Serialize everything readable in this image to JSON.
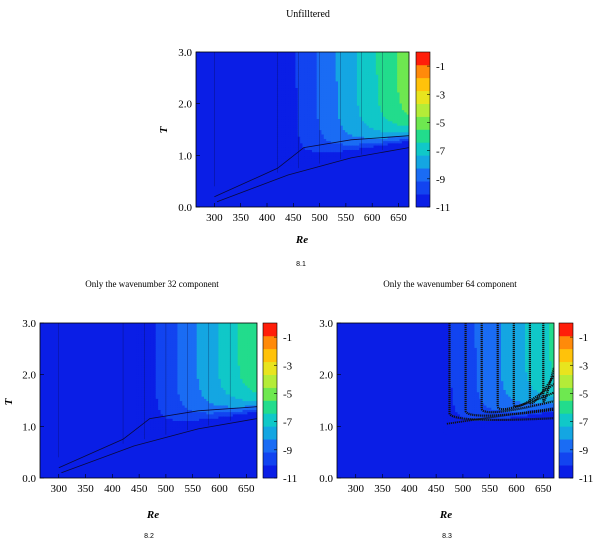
{
  "palette": [
    "#0a1ee6",
    "#1244f0",
    "#1a6cf4",
    "#14a6e2",
    "#10c8c8",
    "#22dc8c",
    "#6ee850",
    "#b4ec38",
    "#e8e41e",
    "#ffc20a",
    "#ff8a0a",
    "#ff1e0a"
  ],
  "chart_data": [
    {
      "type": "heatmap",
      "title": "Unfilltered",
      "caption": "8.1",
      "xlabel": "Re",
      "ylabel": "T",
      "xlim": [
        265,
        670
      ],
      "ylim": [
        0,
        3
      ],
      "xticks": [
        "300",
        "350",
        "400",
        "450",
        "500",
        "550",
        "600",
        "650"
      ],
      "yticks": [
        "0.0",
        "1.0",
        "2.0",
        "3.0"
      ],
      "colorbar_ticks": [
        "-1",
        "-3",
        "-5",
        "-7",
        "-9",
        "-11"
      ],
      "colorbar_range": [
        -11,
        0
      ],
      "variant": "full"
    },
    {
      "type": "heatmap",
      "title": "Only the wavenumber 32 component",
      "caption": "8.2",
      "xlabel": "Re",
      "ylabel": "T",
      "xlim": [
        265,
        670
      ],
      "ylim": [
        0,
        3
      ],
      "xticks": [
        "300",
        "350",
        "400",
        "450",
        "500",
        "550",
        "600",
        "650"
      ],
      "yticks": [
        "0.0",
        "1.0",
        "2.0",
        "3.0"
      ],
      "colorbar_ticks": [
        "-1",
        "-3",
        "-5",
        "-7",
        "-9",
        "-11"
      ],
      "colorbar_range": [
        -11,
        0
      ],
      "variant": "k32"
    },
    {
      "type": "heatmap",
      "title": "Only the wavenumber 64 component",
      "caption": "8.3",
      "xlabel": "Re",
      "ylabel": "",
      "xlim": [
        265,
        670
      ],
      "ylim": [
        0,
        3
      ],
      "xticks": [
        "300",
        "350",
        "400",
        "450",
        "500",
        "550",
        "600",
        "650"
      ],
      "yticks": [
        "0.0",
        "1.0",
        "2.0",
        "3.0"
      ],
      "colorbar_ticks": [
        "-1",
        "-3",
        "-5",
        "-7",
        "-9",
        "-11"
      ],
      "colorbar_range": [
        -11,
        0
      ],
      "variant": "k64"
    }
  ]
}
